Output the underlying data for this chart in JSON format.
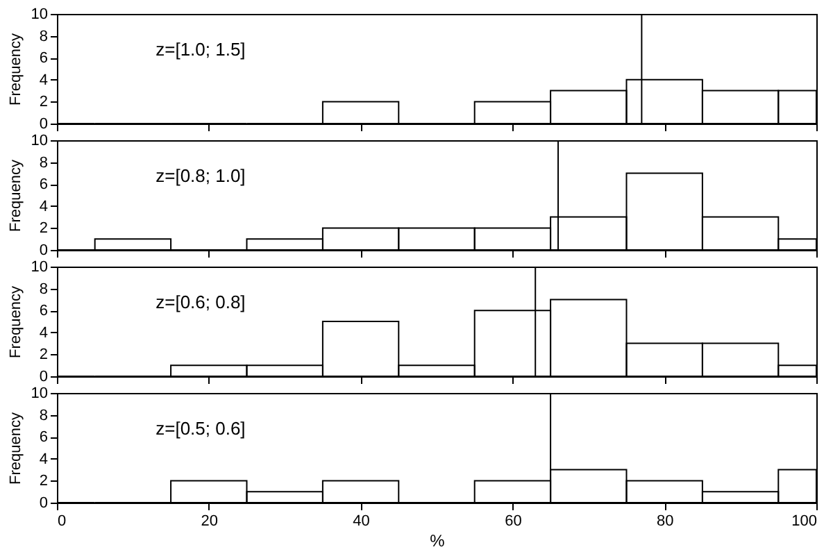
{
  "chart_data": [
    {
      "type": "histogram",
      "ylabel": "Frequency",
      "annotations": [
        "z=[1.0;  1.5]"
      ],
      "bins": [
        0,
        5,
        15,
        25,
        35,
        45,
        55,
        65,
        75,
        85,
        95,
        100
      ],
      "values": [
        0,
        0,
        0,
        0,
        2,
        0,
        2,
        3,
        4,
        3,
        3
      ],
      "color": "#000000",
      "xlim": [
        0,
        100
      ],
      "xticks": [
        0,
        20,
        40,
        60,
        80,
        100
      ],
      "ylim": [
        0,
        10
      ],
      "yticks": [
        0,
        2,
        4,
        6,
        8,
        10
      ],
      "tick_labels": "y",
      "ref_lines": [
        {
          "axis": "x",
          "value": 77
        }
      ]
    },
    {
      "type": "histogram",
      "ylabel": "Frequency",
      "annotations": [
        "z=[0.8;  1.0]"
      ],
      "bins": [
        0,
        5,
        15,
        25,
        35,
        45,
        55,
        65,
        75,
        85,
        95,
        100
      ],
      "values": [
        0,
        1,
        0,
        1,
        2,
        2,
        2,
        3,
        7,
        3,
        1
      ],
      "color": "#000000",
      "xlim": [
        0,
        100
      ],
      "xticks": [
        0,
        20,
        40,
        60,
        80,
        100
      ],
      "ylim": [
        0,
        10
      ],
      "yticks": [
        0,
        2,
        4,
        6,
        8,
        10
      ],
      "tick_labels": "y",
      "ref_lines": [
        {
          "axis": "x",
          "value": 66
        }
      ]
    },
    {
      "type": "histogram",
      "ylabel": "Frequency",
      "annotations": [
        "z=[0.6;  0.8]"
      ],
      "bins": [
        0,
        5,
        15,
        25,
        35,
        45,
        55,
        65,
        75,
        85,
        95,
        100
      ],
      "values": [
        0,
        0,
        1,
        1,
        5,
        1,
        6,
        7,
        3,
        3,
        1
      ],
      "color": "#000000",
      "xlim": [
        0,
        100
      ],
      "xticks": [
        0,
        20,
        40,
        60,
        80,
        100
      ],
      "ylim": [
        0,
        10
      ],
      "yticks": [
        0,
        2,
        4,
        6,
        8,
        10
      ],
      "tick_labels": "y",
      "ref_lines": [
        {
          "axis": "x",
          "value": 63
        }
      ]
    },
    {
      "type": "histogram",
      "xlabel": "%",
      "ylabel": "Frequency",
      "annotations": [
        "z=[0.5;  0.6]"
      ],
      "bins": [
        0,
        5,
        15,
        25,
        35,
        45,
        55,
        65,
        75,
        85,
        95,
        100
      ],
      "values": [
        0,
        0,
        2,
        1,
        2,
        0,
        2,
        3,
        2,
        1,
        3
      ],
      "color": "#000000",
      "xlim": [
        0,
        100
      ],
      "xticks": [
        0,
        20,
        40,
        60,
        80,
        100
      ],
      "ylim": [
        0,
        10
      ],
      "yticks": [
        0,
        2,
        4,
        6,
        8,
        10
      ],
      "ref_lines": [
        {
          "axis": "x",
          "value": 65
        }
      ]
    }
  ]
}
